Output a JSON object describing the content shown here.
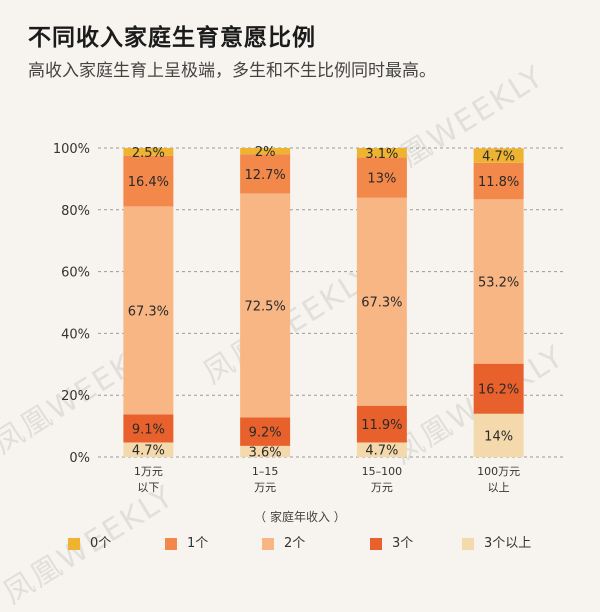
{
  "header": {
    "title": "不同收入家庭生育意愿比例",
    "subtitle": "高收入家庭生育上呈极端，多生和不生比例同时最高。"
  },
  "watermark": "凤凰WEEKLY",
  "chart_data": {
    "type": "bar",
    "stacked": true,
    "xlabel": "（ 家庭年收入 ）",
    "ylabel": "",
    "ylim": [
      0,
      100
    ],
    "yticks": [
      "0%",
      "20%",
      "40%",
      "60%",
      "80%",
      "100%"
    ],
    "categories": [
      [
        "1万元",
        "以下"
      ],
      [
        "1–15",
        "万元"
      ],
      [
        "15–100",
        "万元"
      ],
      [
        "100万元",
        "以上"
      ]
    ],
    "series": [
      {
        "name": "3个以上",
        "color": "#f3d9ab",
        "values": [
          4.7,
          3.6,
          4.7,
          14
        ],
        "labels": [
          "4.7%",
          "3.6%",
          "4.7%",
          "14%"
        ]
      },
      {
        "name": "3个",
        "color": "#e8612c",
        "values": [
          9.1,
          9.2,
          11.9,
          16.2
        ],
        "labels": [
          "9.1%",
          "9.2%",
          "11.9%",
          "16.2%"
        ]
      },
      {
        "name": "2个",
        "color": "#f8b685",
        "values": [
          67.3,
          72.5,
          67.3,
          53.2
        ],
        "labels": [
          "67.3%",
          "72.5%",
          "67.3%",
          "53.2%"
        ]
      },
      {
        "name": "1个",
        "color": "#f2884a",
        "values": [
          16.4,
          12.7,
          13,
          11.8
        ],
        "labels": [
          "16.4%",
          "12.7%",
          "13%",
          "11.8%"
        ]
      },
      {
        "name": "0个",
        "color": "#efb332",
        "values": [
          2.5,
          2,
          3.1,
          4.7
        ],
        "labels": [
          "2.5%",
          "2%",
          "3.1%",
          "4.7%"
        ]
      }
    ],
    "legend_order": [
      "0个",
      "1个",
      "2个",
      "3个",
      "3个以上"
    ],
    "legend_position": "bottom"
  }
}
